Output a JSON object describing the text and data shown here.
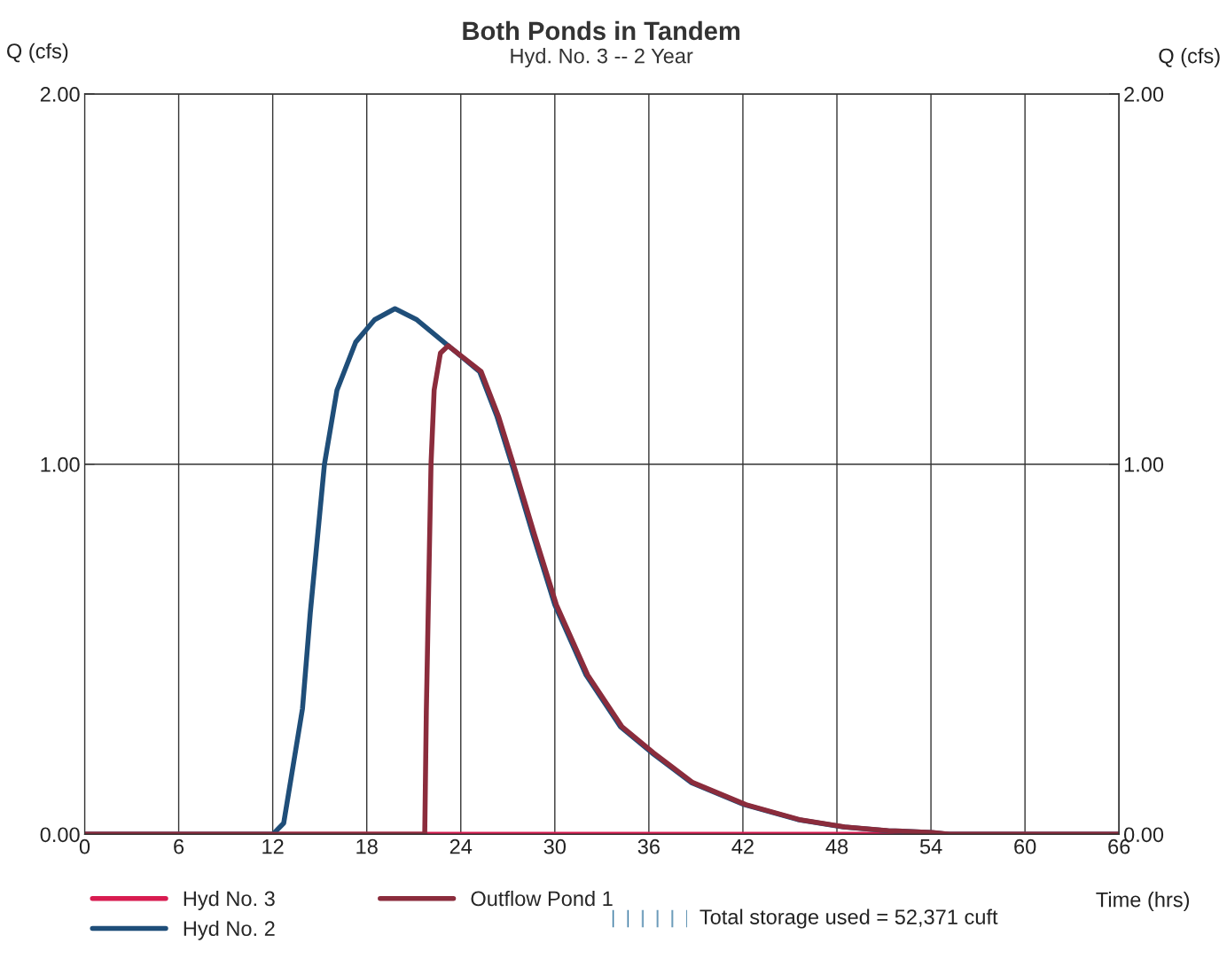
{
  "chart_data": {
    "type": "line",
    "title": "Both Ponds in Tandem",
    "subtitle": "Hyd. No. 3 -- 2 Year",
    "xlabel": "Time (hrs)",
    "ylabel": "Q (cfs)",
    "y2label": "Q (cfs)",
    "xlim": [
      0,
      66
    ],
    "xticks": [
      0,
      6,
      12,
      18,
      24,
      30,
      36,
      42,
      48,
      54,
      60,
      66
    ],
    "ylim": [
      0,
      2
    ],
    "yticks": [
      {
        "value": 0,
        "label": "0.00"
      },
      {
        "value": 1,
        "label": "1.00"
      },
      {
        "value": 2,
        "label": "2.00"
      }
    ],
    "y2lim": [
      0,
      2
    ],
    "y2ticks": [
      {
        "value": 0,
        "label": "0.00"
      },
      {
        "value": 1,
        "label": "1.00"
      },
      {
        "value": 2,
        "label": "2.00"
      }
    ],
    "grid": true,
    "legend": "bottom",
    "marker": "none",
    "line_style": "solid",
    "annotations": [
      "Total storage used = 52,371 cuft"
    ],
    "series": [
      {
        "name": "Hyd No. 3",
        "color": "#d81b50",
        "x": [
          0,
          66
        ],
        "values": [
          0,
          0
        ]
      },
      {
        "name": "Hyd No. 2",
        "color": "#1f4e79",
        "x": [
          0,
          12,
          12.7,
          13.9,
          14.4,
          15.3,
          16.1,
          17.3,
          18.5,
          19.8,
          21.2,
          23.2,
          25.2,
          26.3,
          27.4,
          28.6,
          30.0,
          32.0,
          34.2,
          36.2,
          38.7,
          42.1,
          45.5,
          48.4,
          51.2,
          54,
          55.1,
          66
        ],
        "values": [
          0,
          0,
          0.03,
          0.34,
          0.6,
          1.0,
          1.2,
          1.33,
          1.39,
          1.42,
          1.39,
          1.32,
          1.25,
          1.13,
          0.98,
          0.81,
          0.62,
          0.43,
          0.29,
          0.22,
          0.14,
          0.08,
          0.04,
          0.02,
          0.01,
          0.005,
          0,
          0
        ]
      },
      {
        "name": "Outflow Pond 1",
        "color": "#8b2c3c",
        "x": [
          0,
          21.7,
          21.8,
          22.1,
          22.3,
          22.7,
          23.2,
          25.3,
          26.4,
          27.5,
          28.7,
          30.1,
          32.1,
          34.3,
          36.3,
          38.8,
          42.2,
          45.6,
          48.5,
          51.3,
          54.1,
          55.2,
          66
        ],
        "values": [
          0,
          0,
          0.33,
          1.0,
          1.2,
          1.3,
          1.32,
          1.25,
          1.13,
          0.98,
          0.81,
          0.62,
          0.43,
          0.29,
          0.22,
          0.14,
          0.08,
          0.04,
          0.02,
          0.01,
          0.005,
          0,
          0
        ]
      }
    ]
  }
}
